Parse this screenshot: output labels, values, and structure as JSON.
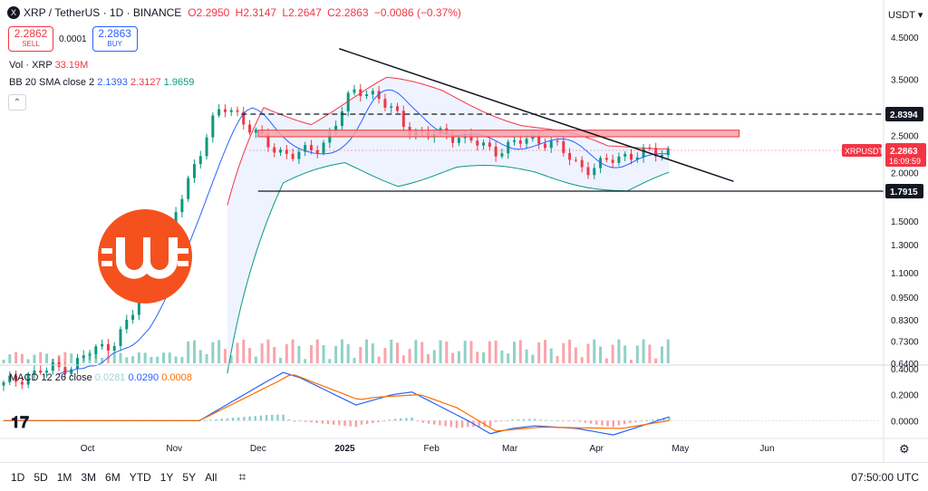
{
  "header": {
    "icon_glyph": "X",
    "title": "XRP / TetherUS · 1D · BINANCE",
    "ohlc": [
      "O2.2950",
      "H2.3147",
      "L2.2647",
      "C2.2863",
      "−0.0086 (−0.37%)"
    ]
  },
  "trade": {
    "sell_price": "2.2862",
    "sell_label": "SELL",
    "spread": "0.0001",
    "buy_price": "2.2863",
    "buy_label": "BUY"
  },
  "indicators": {
    "vol_label": "Vol · XRP",
    "vol_value": "33.19M",
    "bb_label": "BB 20 SMA close 2",
    "bb_basis": "2.1393",
    "bb_upper": "2.3127",
    "bb_lower": "1.9659",
    "macd_label": "MACD 12 26 close",
    "macd_hist": "0.0281",
    "macd_line": "0.0290",
    "macd_signal": "0.0008"
  },
  "currency_button": "USDT",
  "colors": {
    "up": "#089981",
    "down": "#f23645",
    "ma": "#2962ff",
    "upper": "#f23645",
    "lower": "#089981",
    "orange": "#ff6d00",
    "zone": "#f7a1a8",
    "logo": "#f4511e"
  },
  "chart_data": [
    {
      "type": "candlestick",
      "title": "XRP / TetherUS · 1D · BINANCE",
      "y_scale": "log",
      "ylim": [
        0.64,
        4.5
      ],
      "y_ticks": [
        "4.5000",
        "3.5000",
        "2.5000",
        "2.0000",
        "1.5000",
        "1.3000",
        "1.1000",
        "0.9500",
        "0.8300",
        "0.7300",
        "0.6400"
      ],
      "x_ticks": [
        "Oct",
        "Nov",
        "Dec",
        "2025",
        "Feb",
        "Mar",
        "Apr",
        "May",
        "Jun"
      ],
      "x_range": [
        "2024-09-01",
        "2025-07-12"
      ],
      "series": [
        {
          "name": "XRPUSDT",
          "x_start": "2024-09-01",
          "x_end": "2025-04-27",
          "close": [
            0.56,
            0.57,
            0.58,
            0.59,
            0.6,
            0.6,
            0.61,
            0.61,
            0.62,
            0.62,
            0.63,
            0.63,
            0.64,
            0.66,
            0.68,
            0.69,
            0.7,
            0.71,
            0.73,
            0.76,
            0.79,
            0.84,
            0.9,
            0.97,
            1.05,
            1.14,
            1.25,
            1.37,
            1.5,
            1.65,
            1.82,
            2.0,
            2.2,
            2.4,
            2.6,
            2.78,
            2.9,
            2.95,
            2.9,
            2.82,
            2.7,
            2.58,
            2.48,
            2.4,
            2.34,
            2.3,
            2.27,
            2.25,
            2.24,
            2.24,
            2.25,
            2.28,
            2.34,
            2.42,
            2.55,
            2.72,
            2.92,
            3.1,
            3.22,
            3.28,
            3.28,
            3.22,
            3.12,
            3.0,
            2.9,
            2.8,
            2.7,
            2.62,
            2.56,
            2.52,
            2.5,
            2.5,
            2.51,
            2.52,
            2.52,
            2.5,
            2.47,
            2.43,
            2.38,
            2.34,
            2.31,
            2.3,
            2.31,
            2.33,
            2.36,
            2.39,
            2.42,
            2.44,
            2.45,
            2.44,
            2.41,
            2.36,
            2.29,
            2.22,
            2.15,
            2.1,
            2.07,
            2.06,
            2.07,
            2.1,
            2.14,
            2.18,
            2.21,
            2.23,
            2.24,
            2.24,
            2.24,
            2.24,
            2.25,
            2.27,
            2.29
          ]
        },
        {
          "name": "BB 20 basis",
          "values_ref": "series.0.close"
        },
        {
          "name": "BB 20 upper",
          "points": [
            [
              "2024-11-20",
              1.6
            ],
            [
              "2024-12-03",
              2.95
            ],
            [
              "2024-12-20",
              2.75
            ],
            [
              "2025-01-16",
              3.45
            ],
            [
              "2025-02-05",
              3.25
            ],
            [
              "2025-03-05",
              2.7
            ],
            [
              "2025-04-05",
              2.3
            ],
            [
              "2025-04-27",
              2.38
            ]
          ]
        },
        {
          "name": "BB 20 lower",
          "points": [
            [
              "2024-11-20",
              0.62
            ],
            [
              "2024-12-10",
              1.85
            ],
            [
              "2025-01-01",
              2.1
            ],
            [
              "2025-01-20",
              1.9
            ],
            [
              "2025-02-10",
              2.05
            ],
            [
              "2025-03-10",
              2.0
            ],
            [
              "2025-04-12",
              1.8
            ],
            [
              "2025-04-27",
              1.95
            ]
          ]
        }
      ],
      "levels": [
        {
          "label": "2.8394",
          "value": 2.8394,
          "style": "dashed"
        },
        {
          "label": "1.7915",
          "value": 1.7915,
          "style": "solid"
        }
      ],
      "resistance_zone": [
        2.48,
        2.58
      ],
      "trendline": [
        [
          "2024-12-30",
          4.2
        ],
        [
          "2025-05-20",
          1.9
        ]
      ],
      "last_price_label": {
        "symbol": "XRPUSDT",
        "price": "2.2863",
        "countdown": "16:09:59"
      }
    },
    {
      "type": "bar",
      "title": "Vol · XRP",
      "last_value": "33.19M",
      "note": "volume histogram drawn at the base of the price pane"
    },
    {
      "type": "line",
      "title": "MACD 12 26 close",
      "y_ticks": [
        "0.4000",
        "0.2000",
        "0.0000"
      ],
      "ylim": [
        -0.13,
        0.42
      ],
      "series": [
        {
          "name": "MACD",
          "points": [
            [
              "2024-11-10",
              0.0
            ],
            [
              "2024-12-04",
              0.3
            ],
            [
              "2024-12-10",
              0.37
            ],
            [
              "2024-12-16",
              0.33
            ],
            [
              "2025-01-05",
              0.12
            ],
            [
              "2025-01-18",
              0.2
            ],
            [
              "2025-01-25",
              0.22
            ],
            [
              "2025-02-14",
              0.0
            ],
            [
              "2025-02-22",
              -0.1
            ],
            [
              "2025-03-02",
              -0.06
            ],
            [
              "2025-03-10",
              -0.04
            ],
            [
              "2025-03-25",
              -0.06
            ],
            [
              "2025-04-07",
              -0.11
            ],
            [
              "2025-04-27",
              0.029
            ]
          ]
        },
        {
          "name": "Signal",
          "points": [
            [
              "2024-11-10",
              0.0
            ],
            [
              "2024-12-08",
              0.3
            ],
            [
              "2024-12-13",
              0.36
            ],
            [
              "2025-01-06",
              0.16
            ],
            [
              "2025-01-12",
              0.18
            ],
            [
              "2025-01-28",
              0.2
            ],
            [
              "2025-02-10",
              0.1
            ],
            [
              "2025-02-24",
              -0.08
            ],
            [
              "2025-03-12",
              -0.05
            ],
            [
              "2025-04-10",
              -0.06
            ],
            [
              "2025-04-27",
              0.0008
            ]
          ]
        }
      ]
    }
  ],
  "bottom": {
    "timeframes": [
      "1D",
      "5D",
      "1M",
      "3M",
      "6M",
      "YTD",
      "1Y",
      "5Y",
      "All"
    ],
    "clock": "07:50:00 UTC"
  }
}
